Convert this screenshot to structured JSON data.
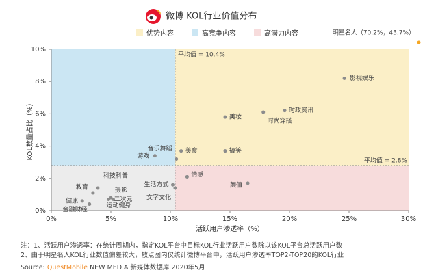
{
  "chart_data": {
    "type": "scatter",
    "title": "微博 KOL行业价值分布",
    "legend": [
      {
        "name": "优势内容",
        "color": "#fbefc7"
      },
      {
        "name": "高竞争内容",
        "color": "#cbe6f3"
      },
      {
        "name": "高潜力内容",
        "color": "#f7dcdc"
      }
    ],
    "low_color": "#ececec",
    "x_label": "活跃用户渗透率（%）",
    "y_label": "KOL数量占比（%）",
    "xlim": [
      0,
      30
    ],
    "ylim": [
      0,
      10
    ],
    "xticks": [
      {
        "value": 0,
        "label": "0%"
      },
      {
        "value": 5,
        "label": "5%"
      },
      {
        "value": 10,
        "label": "10%"
      },
      {
        "value": 15,
        "label": "15%"
      },
      {
        "value": 20,
        "label": "20%"
      },
      {
        "value": 25,
        "label": "25%"
      },
      {
        "value": 30,
        "label": "30%"
      }
    ],
    "yticks": [
      {
        "value": 0,
        "label": "0%"
      },
      {
        "value": 2,
        "label": "2%"
      },
      {
        "value": 4,
        "label": "4%"
      },
      {
        "value": 6,
        "label": "6%"
      },
      {
        "value": 8,
        "label": "8%"
      },
      {
        "value": 10,
        "label": "10%"
      }
    ],
    "avg_x": {
      "value": 10.4,
      "label": "平均值 = 10.4%"
    },
    "avg_y": {
      "value": 2.8,
      "label": "平均值 = 2.8%"
    },
    "series": [
      {
        "color": "#8c8c8c",
        "names": [
          "影视娱乐",
          "时政资讯",
          "时尚穿搭",
          "美妆",
          "搞笑",
          "美食",
          "游戏",
          "音乐舞蹈",
          "情感",
          "颜值",
          "生活方式",
          "文字文化",
          "科技科普",
          "教育",
          "摄影",
          "二次元",
          "健康",
          "金融财经",
          "运动健身"
        ],
        "x": [
          24.6,
          19.6,
          17.8,
          14.6,
          14.6,
          10.9,
          8.7,
          10.5,
          11.4,
          16.5,
          10.2,
          10.4,
          3.9,
          3.5,
          5.0,
          4.8,
          2.6,
          3.2,
          5.2
        ],
        "values": [
          8.2,
          6.2,
          6.1,
          5.8,
          3.7,
          3.7,
          3.4,
          3.2,
          2.1,
          1.7,
          1.6,
          1.4,
          1.4,
          1.1,
          0.8,
          0.7,
          0.6,
          0.4,
          0.7
        ]
      }
    ],
    "annotation": "明星名人（70.2%，43.7%）",
    "notes": [
      "注：1、活跃用户渗透率：在统计周期内，指定KOL平台中目标KOL行业活跃用户数除以该KOL平台总活跃用户数",
      "2、由于明星名人KOL行业数值偏差较大，散点图内仅统计微博平台中，活跃用户渗透率TOP2-TOP20的KOL行业"
    ],
    "source_prefix": "Source: ",
    "source_brand": "QuestMobile",
    "source_rest": " NEW MEDIA 新媒体数据库 2020年5月"
  }
}
